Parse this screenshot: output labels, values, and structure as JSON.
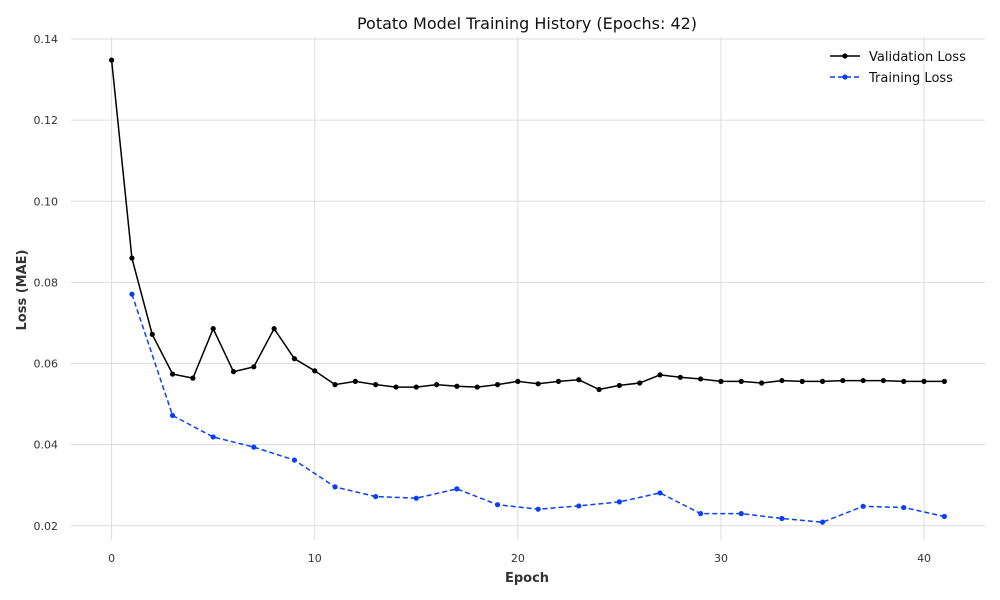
{
  "chart_data": {
    "type": "line",
    "title": "Potato Model Training History (Epochs: 42)",
    "xlabel": "Epoch",
    "ylabel": "Loss (MAE)",
    "xlim": [
      -2,
      43
    ],
    "ylim": [
      0.0165,
      0.1405
    ],
    "xticks": [
      0,
      10,
      20,
      30,
      40
    ],
    "yticks": [
      0.02,
      0.04,
      0.06,
      0.08,
      0.1,
      0.12,
      0.14
    ],
    "ytick_labels": [
      "0.02",
      "0.04",
      "0.06",
      "0.08",
      "0.10",
      "0.12",
      "0.14"
    ],
    "grid": true,
    "legend_position": "top-right",
    "series": [
      {
        "name": "Validation Loss",
        "color": "#000000",
        "style": "solid",
        "x": [
          0,
          1,
          2,
          3,
          4,
          5,
          6,
          7,
          8,
          9,
          10,
          11,
          12,
          13,
          14,
          15,
          16,
          17,
          18,
          19,
          20,
          21,
          22,
          23,
          24,
          25,
          26,
          27,
          28,
          29,
          30,
          31,
          32,
          33,
          34,
          35,
          36,
          37,
          38,
          39,
          40,
          41
        ],
        "y": [
          0.1348,
          0.086,
          0.0672,
          0.0574,
          0.0564,
          0.0686,
          0.058,
          0.0592,
          0.0686,
          0.0612,
          0.0582,
          0.0548,
          0.0556,
          0.0548,
          0.0542,
          0.0542,
          0.0548,
          0.0544,
          0.0542,
          0.0548,
          0.0556,
          0.055,
          0.0556,
          0.056,
          0.0536,
          0.0546,
          0.0552,
          0.0572,
          0.0566,
          0.0562,
          0.0556,
          0.0556,
          0.0552,
          0.0558,
          0.0556,
          0.0556,
          0.0558,
          0.0558,
          0.0558,
          0.0556,
          0.0556,
          0.0556
        ]
      },
      {
        "name": "Training Loss",
        "color": "#0a3ff5",
        "style": "dashed",
        "x": [
          1,
          3,
          5,
          7,
          9,
          11,
          13,
          15,
          17,
          19,
          21,
          23,
          25,
          27,
          29,
          31,
          33,
          35,
          37,
          39,
          41
        ],
        "y": [
          0.0771,
          0.0472,
          0.0419,
          0.0394,
          0.0362,
          0.0296,
          0.0272,
          0.0268,
          0.0291,
          0.0252,
          0.0241,
          0.0249,
          0.0259,
          0.0281,
          0.023,
          0.023,
          0.0218,
          0.0209,
          0.0248,
          0.0245,
          0.0223
        ]
      }
    ]
  }
}
